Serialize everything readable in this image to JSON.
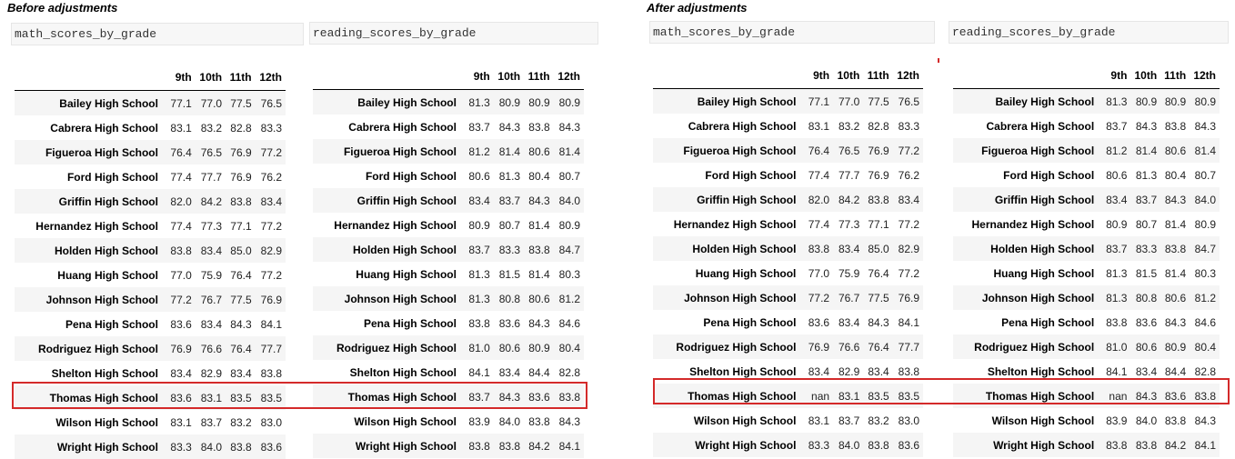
{
  "sections": {
    "before": {
      "title": "Before adjustments"
    },
    "after": {
      "title": "After adjustments"
    }
  },
  "variables": {
    "math": "math_scores_by_grade",
    "reading": "reading_scores_by_grade"
  },
  "grade_columns": [
    "9th",
    "10th",
    "11th",
    "12th"
  ],
  "schools": [
    "Bailey High School",
    "Cabrera High School",
    "Figueroa High School",
    "Ford High School",
    "Griffin High School",
    "Hernandez High School",
    "Holden High School",
    "Huang High School",
    "Johnson High School",
    "Pena High School",
    "Rodriguez High School",
    "Shelton High School",
    "Thomas High School",
    "Wilson High School",
    "Wright High School"
  ],
  "highlighted_school": "Thomas High School",
  "highlight_color": "#d42a2a",
  "before": {
    "math": [
      [
        "77.1",
        "77.0",
        "77.5",
        "76.5"
      ],
      [
        "83.1",
        "83.2",
        "82.8",
        "83.3"
      ],
      [
        "76.4",
        "76.5",
        "76.9",
        "77.2"
      ],
      [
        "77.4",
        "77.7",
        "76.9",
        "76.2"
      ],
      [
        "82.0",
        "84.2",
        "83.8",
        "83.4"
      ],
      [
        "77.4",
        "77.3",
        "77.1",
        "77.2"
      ],
      [
        "83.8",
        "83.4",
        "85.0",
        "82.9"
      ],
      [
        "77.0",
        "75.9",
        "76.4",
        "77.2"
      ],
      [
        "77.2",
        "76.7",
        "77.5",
        "76.9"
      ],
      [
        "83.6",
        "83.4",
        "84.3",
        "84.1"
      ],
      [
        "76.9",
        "76.6",
        "76.4",
        "77.7"
      ],
      [
        "83.4",
        "82.9",
        "83.4",
        "83.8"
      ],
      [
        "83.6",
        "83.1",
        "83.5",
        "83.5"
      ],
      [
        "83.1",
        "83.7",
        "83.2",
        "83.0"
      ],
      [
        "83.3",
        "84.0",
        "83.8",
        "83.6"
      ]
    ],
    "reading": [
      [
        "81.3",
        "80.9",
        "80.9",
        "80.9"
      ],
      [
        "83.7",
        "84.3",
        "83.8",
        "84.3"
      ],
      [
        "81.2",
        "81.4",
        "80.6",
        "81.4"
      ],
      [
        "80.6",
        "81.3",
        "80.4",
        "80.7"
      ],
      [
        "83.4",
        "83.7",
        "84.3",
        "84.0"
      ],
      [
        "80.9",
        "80.7",
        "81.4",
        "80.9"
      ],
      [
        "83.7",
        "83.3",
        "83.8",
        "84.7"
      ],
      [
        "81.3",
        "81.5",
        "81.4",
        "80.3"
      ],
      [
        "81.3",
        "80.8",
        "80.6",
        "81.2"
      ],
      [
        "83.8",
        "83.6",
        "84.3",
        "84.6"
      ],
      [
        "81.0",
        "80.6",
        "80.9",
        "80.4"
      ],
      [
        "84.1",
        "83.4",
        "84.4",
        "82.8"
      ],
      [
        "83.7",
        "84.3",
        "83.6",
        "83.8"
      ],
      [
        "83.9",
        "84.0",
        "83.8",
        "84.3"
      ],
      [
        "83.8",
        "83.8",
        "84.2",
        "84.1"
      ]
    ]
  },
  "after": {
    "math": [
      [
        "77.1",
        "77.0",
        "77.5",
        "76.5"
      ],
      [
        "83.1",
        "83.2",
        "82.8",
        "83.3"
      ],
      [
        "76.4",
        "76.5",
        "76.9",
        "77.2"
      ],
      [
        "77.4",
        "77.7",
        "76.9",
        "76.2"
      ],
      [
        "82.0",
        "84.2",
        "83.8",
        "83.4"
      ],
      [
        "77.4",
        "77.3",
        "77.1",
        "77.2"
      ],
      [
        "83.8",
        "83.4",
        "85.0",
        "82.9"
      ],
      [
        "77.0",
        "75.9",
        "76.4",
        "77.2"
      ],
      [
        "77.2",
        "76.7",
        "77.5",
        "76.9"
      ],
      [
        "83.6",
        "83.4",
        "84.3",
        "84.1"
      ],
      [
        "76.9",
        "76.6",
        "76.4",
        "77.7"
      ],
      [
        "83.4",
        "82.9",
        "83.4",
        "83.8"
      ],
      [
        "nan",
        "83.1",
        "83.5",
        "83.5"
      ],
      [
        "83.1",
        "83.7",
        "83.2",
        "83.0"
      ],
      [
        "83.3",
        "84.0",
        "83.8",
        "83.6"
      ]
    ],
    "reading": [
      [
        "81.3",
        "80.9",
        "80.9",
        "80.9"
      ],
      [
        "83.7",
        "84.3",
        "83.8",
        "84.3"
      ],
      [
        "81.2",
        "81.4",
        "80.6",
        "81.4"
      ],
      [
        "80.6",
        "81.3",
        "80.4",
        "80.7"
      ],
      [
        "83.4",
        "83.7",
        "84.3",
        "84.0"
      ],
      [
        "80.9",
        "80.7",
        "81.4",
        "80.9"
      ],
      [
        "83.7",
        "83.3",
        "83.8",
        "84.7"
      ],
      [
        "81.3",
        "81.5",
        "81.4",
        "80.3"
      ],
      [
        "81.3",
        "80.8",
        "80.6",
        "81.2"
      ],
      [
        "83.8",
        "83.6",
        "84.3",
        "84.6"
      ],
      [
        "81.0",
        "80.6",
        "80.9",
        "80.4"
      ],
      [
        "84.1",
        "83.4",
        "84.4",
        "82.8"
      ],
      [
        "nan",
        "84.3",
        "83.6",
        "83.8"
      ],
      [
        "83.9",
        "84.0",
        "83.8",
        "84.3"
      ],
      [
        "83.8",
        "83.8",
        "84.2",
        "84.1"
      ]
    ]
  }
}
